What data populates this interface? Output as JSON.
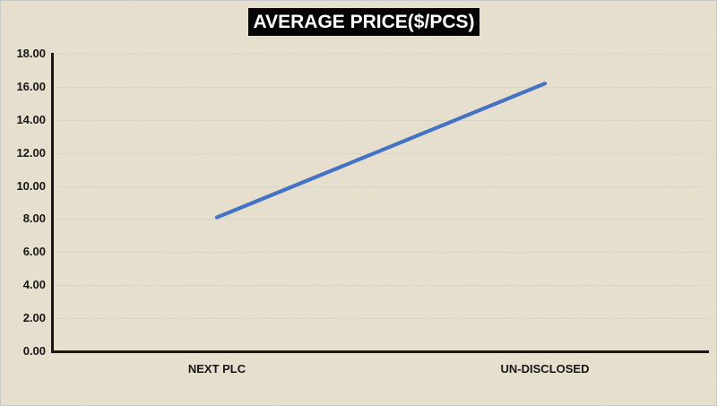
{
  "colors": {
    "background": "#e9e2d1",
    "title_box_bg": "#050505",
    "title_text": "#ffffff",
    "axis": "#161616",
    "gridline": "#d7d4ca",
    "line": "#4472c4",
    "tick_text": "#161616"
  },
  "chart_data": {
    "type": "line",
    "title": "AVERAGE PRICE($/PCS)",
    "categories": [
      "NEXT PLC",
      "UN-DISCLOSED"
    ],
    "series": [
      {
        "name": "AVERAGE PRICE($/PCS)",
        "values": [
          8.1,
          16.2
        ]
      }
    ],
    "xlabel": "",
    "ylabel": "",
    "ylim": [
      0,
      18
    ],
    "ytick_step": 2,
    "ytick_labels": [
      "0.00",
      "2.00",
      "4.00",
      "6.00",
      "8.00",
      "10.00",
      "12.00",
      "14.00",
      "16.00",
      "18.00"
    ],
    "grid": true,
    "legend_position": "none",
    "line_color": "#4472c4"
  }
}
